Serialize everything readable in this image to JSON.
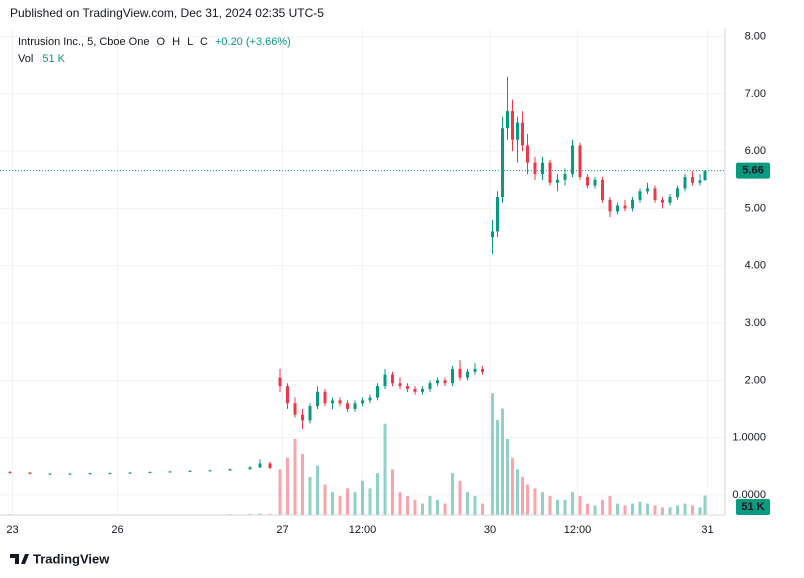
{
  "chart_data": {
    "type": "candlestick",
    "published": "Published on TradingView.com, Dec 31, 2024 02:35 UTC-5",
    "symbol": "Intrusion Inc., 5, Cboe One",
    "ohlc_letters": [
      "O",
      "H",
      "L",
      "C"
    ],
    "change": "+0.20 (+3.66%)",
    "volume_title": "Vol",
    "volume_label": "51 K",
    "brand": "TradingView",
    "up_color": "#089981",
    "down_color": "#f23645",
    "xlim": [
      -4,
      286
    ],
    "xticks": [
      {
        "value": 1,
        "label": "23"
      },
      {
        "value": 43,
        "label": "26"
      },
      {
        "value": 109,
        "label": "27"
      },
      {
        "value": 141,
        "label": "12:00"
      },
      {
        "value": 192,
        "label": "30"
      },
      {
        "value": 227,
        "label": "12:00"
      },
      {
        "value": 279,
        "label": "31"
      }
    ],
    "ylim": [
      -0.35,
      8.15
    ],
    "yticks": [
      {
        "value": 8,
        "label": "8.00"
      },
      {
        "value": 7,
        "label": "7.00"
      },
      {
        "value": 6,
        "label": "6.00"
      },
      {
        "value": 5,
        "label": "5.00"
      },
      {
        "value": 4,
        "label": "4.00"
      },
      {
        "value": 3,
        "label": "3.00"
      },
      {
        "value": 2,
        "label": "2.00"
      },
      {
        "value": 1,
        "label": "1.0000"
      },
      {
        "value": 0,
        "label": "0.0000"
      }
    ],
    "volume_ylim": [
      0,
      1280
    ],
    "grid": true,
    "candles": [
      [
        0,
        0.4,
        0.42,
        0.37,
        0.39,
        2
      ],
      [
        8,
        0.39,
        0.4,
        0.36,
        0.37,
        1
      ],
      [
        16,
        0.37,
        0.38,
        0.36,
        0.37,
        1
      ],
      [
        24,
        0.37,
        0.38,
        0.36,
        0.37,
        1
      ],
      [
        32,
        0.37,
        0.39,
        0.36,
        0.38,
        1
      ],
      [
        40,
        0.38,
        0.39,
        0.37,
        0.38,
        1
      ],
      [
        48,
        0.38,
        0.4,
        0.37,
        0.39,
        1
      ],
      [
        56,
        0.39,
        0.41,
        0.38,
        0.4,
        1
      ],
      [
        64,
        0.4,
        0.42,
        0.39,
        0.41,
        1
      ],
      [
        72,
        0.41,
        0.43,
        0.4,
        0.42,
        1
      ],
      [
        80,
        0.42,
        0.44,
        0.41,
        0.43,
        1
      ],
      [
        88,
        0.43,
        0.46,
        0.42,
        0.45,
        2
      ],
      [
        96,
        0.45,
        0.5,
        0.44,
        0.48,
        3
      ],
      [
        100,
        0.48,
        0.62,
        0.47,
        0.55,
        4
      ],
      [
        104,
        0.55,
        0.58,
        0.45,
        0.47,
        3
      ],
      [
        108,
        2.05,
        2.2,
        1.8,
        1.9,
        120
      ],
      [
        111,
        1.9,
        1.95,
        1.5,
        1.6,
        150
      ],
      [
        114,
        1.6,
        1.7,
        1.35,
        1.4,
        200
      ],
      [
        117,
        1.4,
        1.5,
        1.15,
        1.3,
        160
      ],
      [
        120,
        1.3,
        1.6,
        1.25,
        1.55,
        100
      ],
      [
        123,
        1.55,
        1.9,
        1.5,
        1.8,
        130
      ],
      [
        126,
        1.8,
        1.85,
        1.55,
        1.6,
        80
      ],
      [
        129,
        1.6,
        1.7,
        1.5,
        1.65,
        60
      ],
      [
        132,
        1.65,
        1.7,
        1.55,
        1.6,
        50
      ],
      [
        135,
        1.6,
        1.65,
        1.45,
        1.5,
        70
      ],
      [
        138,
        1.5,
        1.65,
        1.45,
        1.6,
        60
      ],
      [
        141,
        1.6,
        1.7,
        1.55,
        1.65,
        90
      ],
      [
        144,
        1.65,
        1.75,
        1.6,
        1.7,
        70
      ],
      [
        147,
        1.7,
        1.95,
        1.65,
        1.9,
        110
      ],
      [
        150,
        1.9,
        2.2,
        1.85,
        2.1,
        240
      ],
      [
        153,
        2.1,
        2.15,
        1.9,
        1.95,
        120
      ],
      [
        156,
        1.95,
        2.05,
        1.85,
        1.9,
        60
      ],
      [
        159,
        1.9,
        1.95,
        1.8,
        1.85,
        50
      ],
      [
        162,
        1.85,
        1.9,
        1.75,
        1.8,
        40
      ],
      [
        165,
        1.8,
        1.9,
        1.75,
        1.85,
        30
      ],
      [
        168,
        1.85,
        2.0,
        1.8,
        1.95,
        50
      ],
      [
        171,
        1.95,
        2.05,
        1.9,
        2.0,
        40
      ],
      [
        174,
        2.0,
        2.05,
        1.9,
        1.95,
        30
      ],
      [
        177,
        1.95,
        2.25,
        1.9,
        2.2,
        110
      ],
      [
        180,
        2.2,
        2.35,
        2.0,
        2.05,
        90
      ],
      [
        183,
        2.05,
        2.2,
        2.0,
        2.15,
        60
      ],
      [
        186,
        2.15,
        2.3,
        2.1,
        2.2,
        50
      ],
      [
        189,
        2.2,
        2.25,
        2.1,
        2.15,
        30
      ],
      [
        193,
        4.5,
        4.8,
        4.2,
        4.6,
        320
      ],
      [
        195,
        4.6,
        5.3,
        4.5,
        5.2,
        250
      ],
      [
        197,
        5.2,
        6.6,
        5.1,
        6.4,
        280
      ],
      [
        199,
        6.4,
        7.3,
        6.2,
        6.7,
        200
      ],
      [
        201,
        6.7,
        6.9,
        6.0,
        6.2,
        150
      ],
      [
        203,
        6.2,
        6.6,
        5.8,
        6.5,
        120
      ],
      [
        205,
        6.5,
        6.7,
        6.0,
        6.1,
        100
      ],
      [
        207,
        6.1,
        6.3,
        5.6,
        5.8,
        80
      ],
      [
        210,
        5.8,
        5.9,
        5.5,
        5.6,
        70
      ],
      [
        213,
        5.6,
        5.9,
        5.5,
        5.8,
        60
      ],
      [
        216,
        5.8,
        5.85,
        5.4,
        5.45,
        50
      ],
      [
        219,
        5.45,
        5.6,
        5.3,
        5.5,
        40
      ],
      [
        222,
        5.5,
        5.7,
        5.4,
        5.6,
        40
      ],
      [
        225,
        5.6,
        6.2,
        5.55,
        6.1,
        60
      ],
      [
        228,
        6.1,
        6.15,
        5.5,
        5.55,
        50
      ],
      [
        231,
        5.55,
        5.6,
        5.35,
        5.4,
        30
      ],
      [
        234,
        5.4,
        5.55,
        5.35,
        5.5,
        25
      ],
      [
        237,
        5.5,
        5.55,
        5.1,
        5.15,
        40
      ],
      [
        240,
        5.15,
        5.2,
        4.85,
        4.95,
        50
      ],
      [
        243,
        4.95,
        5.1,
        4.9,
        5.05,
        30
      ],
      [
        246,
        5.05,
        5.15,
        4.95,
        5.0,
        25
      ],
      [
        249,
        5.0,
        5.2,
        4.95,
        5.15,
        30
      ],
      [
        252,
        5.15,
        5.35,
        5.1,
        5.3,
        35
      ],
      [
        255,
        5.3,
        5.45,
        5.25,
        5.35,
        30
      ],
      [
        258,
        5.35,
        5.4,
        5.1,
        5.15,
        25
      ],
      [
        261,
        5.15,
        5.2,
        5.0,
        5.1,
        20
      ],
      [
        264,
        5.1,
        5.25,
        5.05,
        5.2,
        20
      ],
      [
        267,
        5.2,
        5.4,
        5.15,
        5.35,
        25
      ],
      [
        270,
        5.35,
        5.6,
        5.3,
        5.55,
        30
      ],
      [
        273,
        5.55,
        5.65,
        5.4,
        5.45,
        25
      ],
      [
        276,
        5.45,
        5.6,
        5.4,
        5.49,
        20
      ],
      [
        278,
        5.49,
        5.66,
        5.49,
        5.66,
        51
      ]
    ]
  }
}
